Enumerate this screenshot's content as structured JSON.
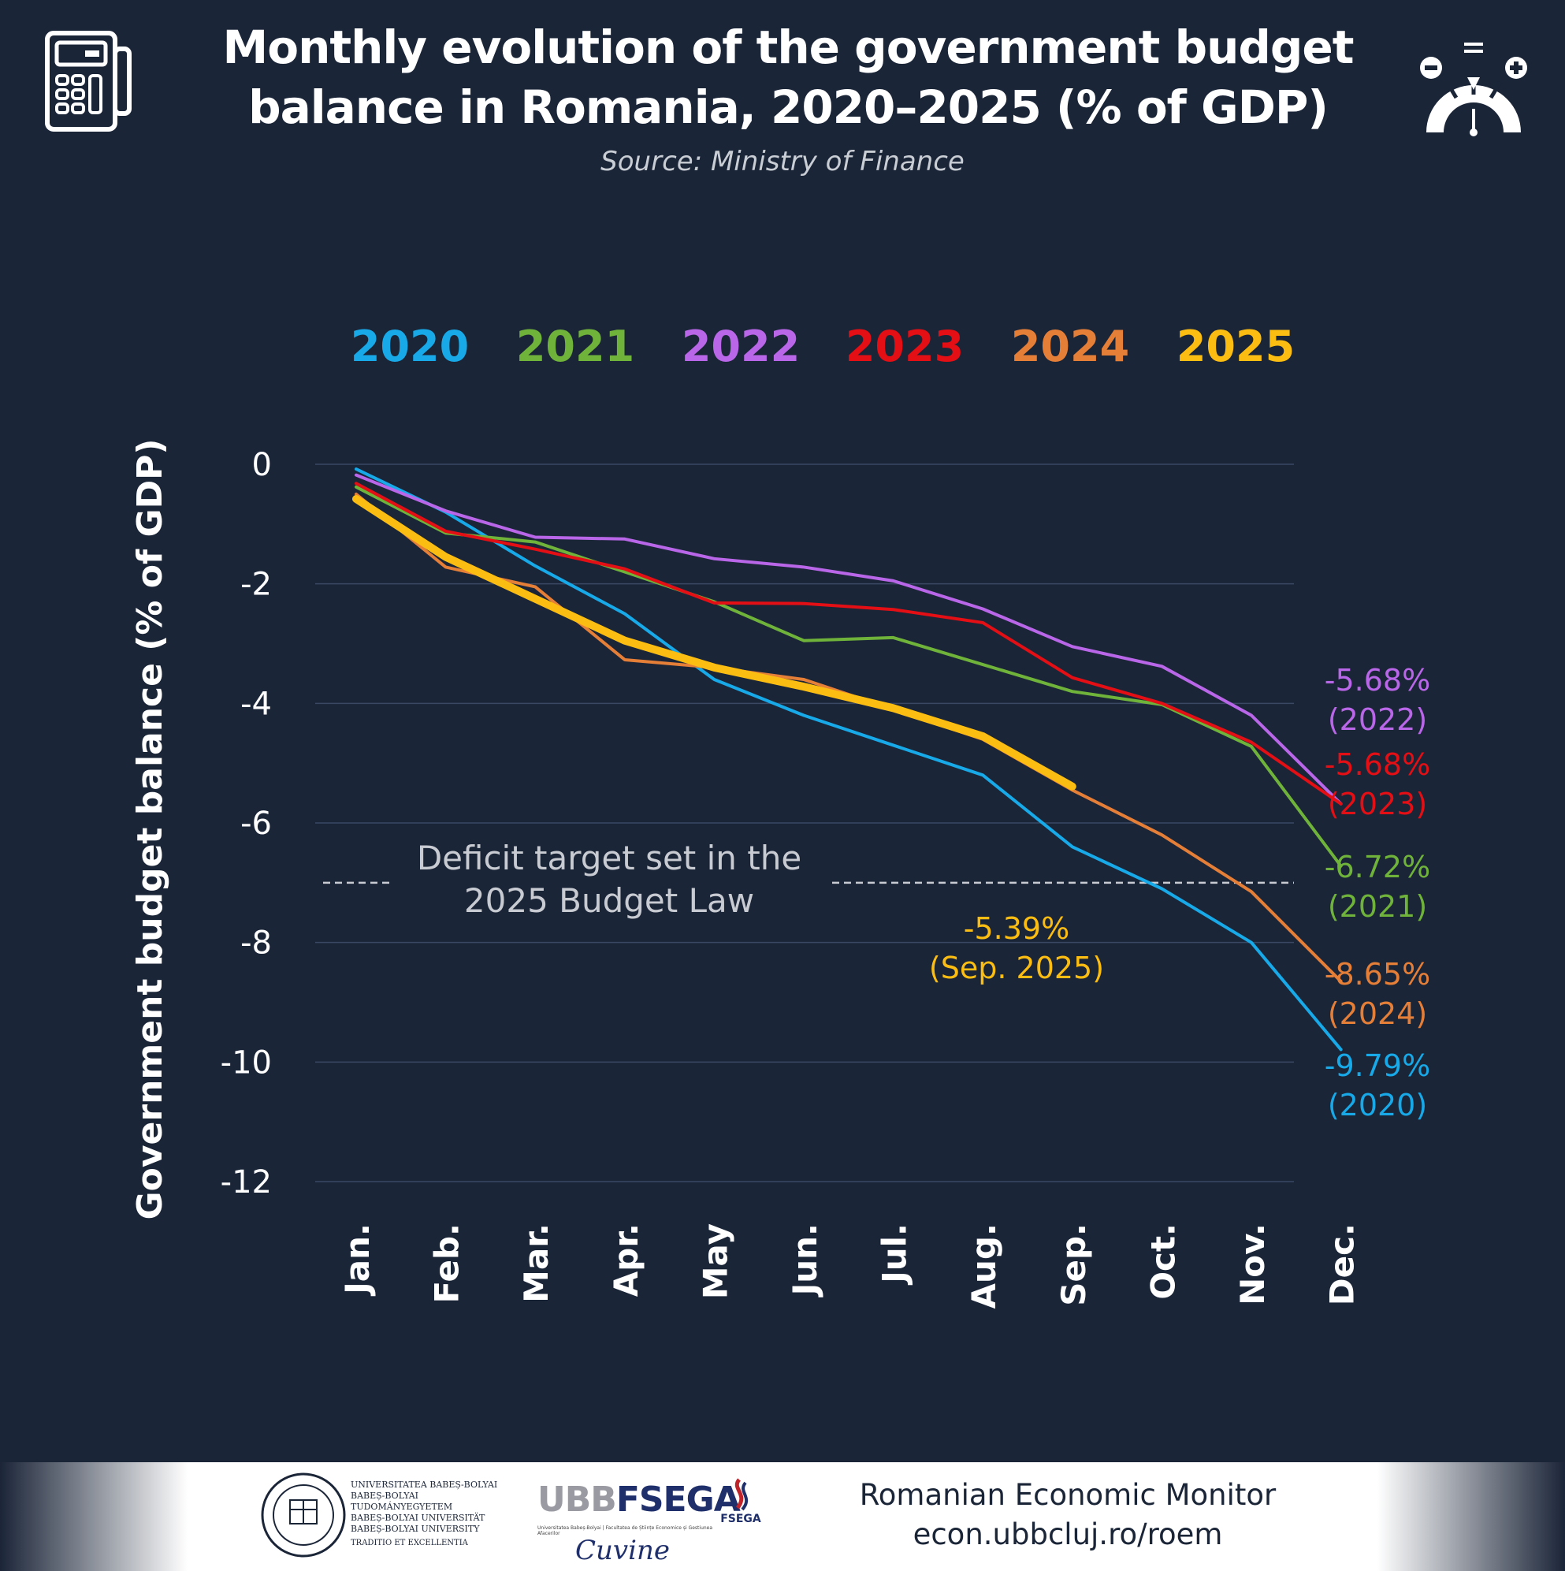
{
  "header": {
    "title_line1": "Monthly evolution of the government budget",
    "title_line2": "balance in Romania, 2020–2025 (% of GDP)",
    "source": "Source: Ministry of Finance",
    "left_icon": "calculator-icon",
    "right_icon": "balance-gauge-icon"
  },
  "chart_data": {
    "type": "line",
    "ylabel": "Government budget balance (% of GDP)",
    "xlabel": "",
    "categories": [
      "Jan.",
      "Feb.",
      "Mar.",
      "Apr.",
      "May",
      "Jun.",
      "Jul.",
      "Aug.",
      "Sep.",
      "Oct.",
      "Nov.",
      "Dec."
    ],
    "ylim": [
      -12,
      0
    ],
    "yticks": [
      0,
      -2,
      -4,
      -6,
      -8,
      -10,
      -12
    ],
    "grid": true,
    "legend_position": "top",
    "series": [
      {
        "name": "2020",
        "color": "#17a9e8",
        "values": [
          -0.08,
          -0.8,
          -1.7,
          -2.5,
          -3.6,
          -4.2,
          -4.7,
          -5.2,
          -6.4,
          -7.1,
          -8.0,
          -9.79
        ]
      },
      {
        "name": "2021",
        "color": "#6fb33a",
        "values": [
          -0.38,
          -1.15,
          -1.3,
          -1.8,
          -2.3,
          -2.95,
          -2.9,
          -3.35,
          -3.8,
          -4.02,
          -4.72,
          -6.72
        ]
      },
      {
        "name": "2022",
        "color": "#b967e8",
        "values": [
          -0.18,
          -0.78,
          -1.22,
          -1.25,
          -1.58,
          -1.72,
          -1.95,
          -2.42,
          -3.05,
          -3.38,
          -4.2,
          -5.68
        ]
      },
      {
        "name": "2023",
        "color": "#e40f14",
        "values": [
          -0.32,
          -1.12,
          -1.42,
          -1.75,
          -2.32,
          -2.33,
          -2.43,
          -2.65,
          -3.57,
          -4.0,
          -4.65,
          -5.68
        ]
      },
      {
        "name": "2024",
        "color": "#e57f38",
        "values": [
          -0.5,
          -1.72,
          -2.05,
          -3.27,
          -3.4,
          -3.6,
          -4.1,
          -4.6,
          -5.45,
          -6.2,
          -7.15,
          -8.65
        ]
      },
      {
        "name": "2025",
        "color": "#fbbd12",
        "values": [
          -0.58,
          -1.55,
          -2.25,
          -2.95,
          -3.4,
          -3.72,
          -4.08,
          -4.55,
          -5.39,
          null,
          null,
          null
        ]
      }
    ],
    "target": {
      "value": -7.0,
      "label_line1": "Deficit target set in the",
      "label_line2": "2025 Budget Law",
      "color": "#c8ccd2"
    },
    "annotations": [
      {
        "text": "-5.68%",
        "sub": "(2022)",
        "color": "#b967e8"
      },
      {
        "text": "-5.68%",
        "sub": "(2023)",
        "color": "#e40f14"
      },
      {
        "text": "-6.72%",
        "sub": "(2021)",
        "color": "#6fb33a"
      },
      {
        "text": "-8.65%",
        "sub": "(2024)",
        "color": "#e57f38"
      },
      {
        "text": "-9.79%",
        "sub": "(2020)",
        "color": "#17a9e8"
      },
      {
        "text": "-5.39%",
        "sub": "(Sep. 2025)",
        "color": "#fbbd12"
      }
    ]
  },
  "footer": {
    "monitor_title": "Romanian Economic Monitor",
    "monitor_url": "econ.ubbcluj.ro/roem",
    "ubb_lines": [
      "UNIVERSITATEA BABEȘ-BOLYAI",
      "BABEȘ-BOLYAI TUDOMÁNYEGYETEM",
      "BABEȘ-BOLYAI UNIVERSITÄT",
      "BABEȘ-BOLYAI UNIVERSITY",
      "TRADITIO ET EXCELLENTIA"
    ],
    "fsega_ubb": "UBB",
    "fsega_name": "FSEGA",
    "fsega_sub": "Universitatea Babeș-Bolyai | Facultatea de Științe Economice și Gestiunea Afacerilor",
    "fsega_badge": "FSEGA",
    "script_word": "Cuvine"
  }
}
